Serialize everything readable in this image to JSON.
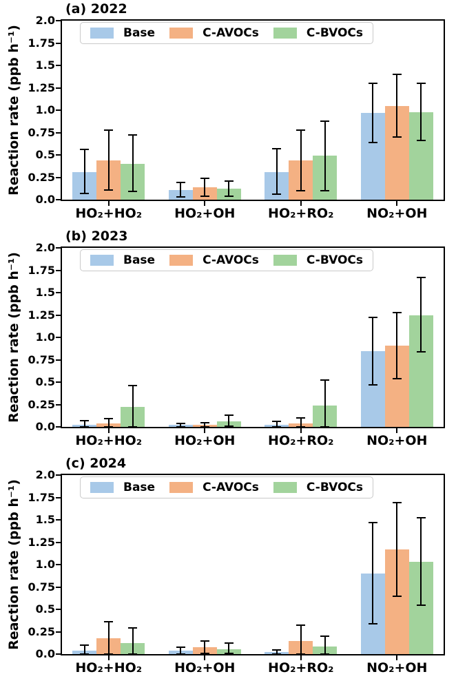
{
  "ylabel": "Reaction rate (ppb h⁻¹)",
  "categories": [
    "HO₂+HO₂",
    "HO₂+OH",
    "HO₂+RO₂",
    "NO₂+OH"
  ],
  "yticks": {
    "labels": [
      "2.0",
      "1.75",
      "1.5",
      "1.25",
      "1.0",
      "0.75",
      "0.5",
      "0.25",
      "0.0"
    ],
    "values": [
      2.0,
      1.75,
      1.5,
      1.25,
      1.0,
      0.75,
      0.5,
      0.25,
      0.0
    ]
  },
  "legend": {
    "items": [
      {
        "label": "Base",
        "color": "#a8c9e8"
      },
      {
        "label": "C-AVOCs",
        "color": "#f4b183"
      },
      {
        "label": "C-BVOCs",
        "color": "#a2d39c"
      }
    ]
  },
  "colors": {
    "axis": "#000000",
    "error_bar": "#000000",
    "legend_border": "#c9c9c9",
    "background": "#ffffff"
  },
  "chart_data": [
    {
      "type": "bar",
      "panel": "a",
      "title": "(a) 2022",
      "year": 2022,
      "xlabel": "",
      "ylabel": "Reaction rate (ppb h⁻¹)",
      "ylim": [
        0,
        2.0
      ],
      "grid": false,
      "legend_position": "upper left inside",
      "categories": [
        "HO₂+HO₂",
        "HO₂+OH",
        "HO₂+RO₂",
        "NO₂+OH"
      ],
      "series": [
        {
          "name": "Base",
          "values": [
            0.31,
            0.11,
            0.31,
            0.97
          ],
          "err_low": [
            0.07,
            0.03,
            0.06,
            0.64
          ],
          "err_high": [
            0.56,
            0.19,
            0.57,
            1.3
          ]
        },
        {
          "name": "C-AVOCs",
          "values": [
            0.44,
            0.14,
            0.44,
            1.05
          ],
          "err_low": [
            0.11,
            0.04,
            0.1,
            0.7
          ],
          "err_high": [
            0.78,
            0.24,
            0.78,
            1.4
          ]
        },
        {
          "name": "C-BVOCs",
          "values": [
            0.4,
            0.12,
            0.49,
            0.98
          ],
          "err_low": [
            0.09,
            0.04,
            0.1,
            0.66
          ],
          "err_high": [
            0.72,
            0.21,
            0.88,
            1.3
          ]
        }
      ]
    },
    {
      "type": "bar",
      "panel": "b",
      "title": "(b) 2023",
      "year": 2023,
      "xlabel": "",
      "ylabel": "Reaction rate (ppb h⁻¹)",
      "ylim": [
        0,
        2.0
      ],
      "grid": false,
      "legend_position": "upper left inside",
      "categories": [
        "HO₂+HO₂",
        "HO₂+OH",
        "HO₂+RO₂",
        "NO₂+OH"
      ],
      "series": [
        {
          "name": "Base",
          "values": [
            0.025,
            0.02,
            0.025,
            0.85
          ],
          "err_low": [
            0,
            0,
            0,
            0.47
          ],
          "err_high": [
            0.07,
            0.04,
            0.06,
            1.22
          ]
        },
        {
          "name": "C-AVOCs",
          "values": [
            0.04,
            0.025,
            0.04,
            0.91
          ],
          "err_low": [
            0,
            0,
            0,
            0.54
          ],
          "err_high": [
            0.09,
            0.05,
            0.1,
            1.28
          ]
        },
        {
          "name": "C-BVOCs",
          "values": [
            0.22,
            0.065,
            0.24,
            1.25
          ],
          "err_low": [
            0,
            0.01,
            0,
            0.84
          ],
          "err_high": [
            0.46,
            0.13,
            0.52,
            1.67
          ]
        }
      ]
    },
    {
      "type": "bar",
      "panel": "c",
      "title": "(c) 2024",
      "year": 2024,
      "xlabel": "",
      "ylabel": "Reaction rate (ppb h⁻¹)",
      "ylim": [
        0,
        2.0
      ],
      "grid": false,
      "legend_position": "upper left inside",
      "categories": [
        "HO₂+HO₂",
        "HO₂+OH",
        "HO₂+RO₂",
        "NO₂+OH"
      ],
      "series": [
        {
          "name": "Base",
          "values": [
            0.04,
            0.035,
            0.02,
            0.9
          ],
          "err_low": [
            0,
            0,
            0,
            0.34
          ],
          "err_high": [
            0.1,
            0.08,
            0.05,
            1.47
          ]
        },
        {
          "name": "C-AVOCs",
          "values": [
            0.18,
            0.08,
            0.15,
            1.17
          ],
          "err_low": [
            0,
            0.01,
            0,
            0.65
          ],
          "err_high": [
            0.36,
            0.15,
            0.32,
            1.69
          ]
        },
        {
          "name": "C-BVOCs",
          "values": [
            0.12,
            0.055,
            0.085,
            1.03
          ],
          "err_low": [
            0,
            0.01,
            0,
            0.55
          ],
          "err_high": [
            0.29,
            0.12,
            0.2,
            1.52
          ]
        }
      ]
    }
  ]
}
